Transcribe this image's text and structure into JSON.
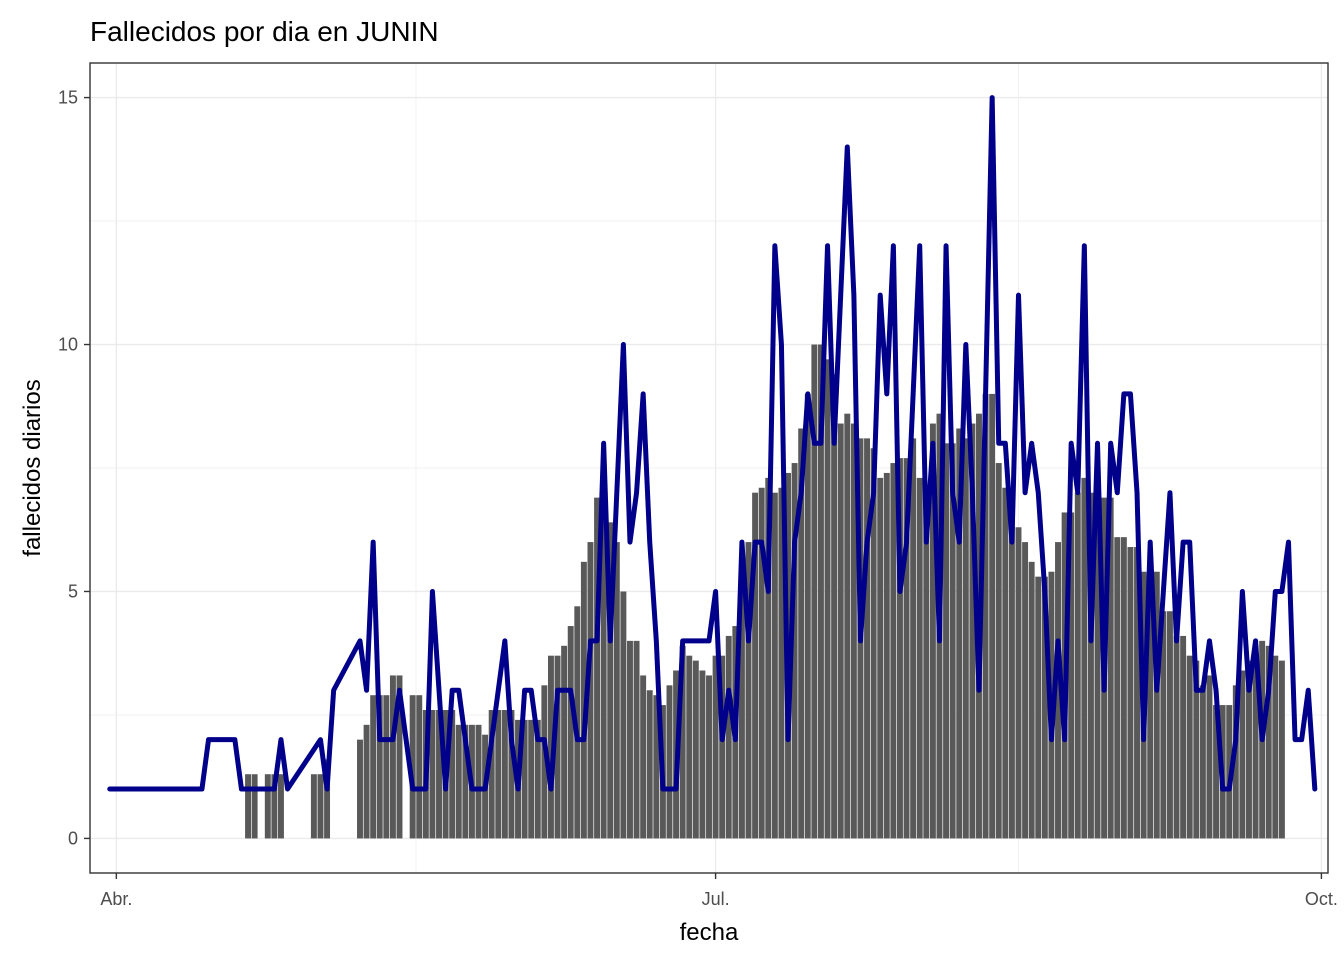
{
  "chart_data": {
    "type": "bar",
    "title": "Fallecidos por dia en JUNIN",
    "xlabel": "fecha",
    "ylabel": "fallecidos diarios",
    "x_ticks": [
      "Abr.",
      "Jul.",
      "Oct."
    ],
    "y_ticks": [
      "0",
      "5",
      "10",
      "15"
    ],
    "y_tick_values": [
      0,
      5,
      10,
      15
    ],
    "ylim": [
      -0.7,
      15.7
    ],
    "xlim": [
      "2020-03-28",
      "2020-10-02"
    ],
    "grid": true,
    "bar_color": "#595959",
    "line_color": "#00008B",
    "series": [
      {
        "type": "bar",
        "start_date": "2020-04-21",
        "values": [
          1.3,
          1.3,
          0,
          1.3,
          1.3,
          1.3,
          0,
          0,
          0,
          0,
          1.3,
          1.3,
          1.6,
          0,
          0,
          0,
          0,
          2,
          2.3,
          2.9,
          2.9,
          2.9,
          3.3,
          3.3,
          0,
          2.9,
          2.9,
          2.6,
          2.6,
          2.6,
          2.6,
          2.6,
          2.3,
          2.3,
          2.3,
          2.3,
          2.1,
          2.6,
          2.6,
          2.6,
          2.6,
          2.4,
          2.4,
          2.4,
          2.4,
          3.1,
          3.7,
          3.7,
          3.9,
          4.3,
          4.7,
          5.6,
          6,
          6.9,
          6.7,
          6.4,
          6,
          5,
          4,
          4,
          3.3,
          3,
          2.9,
          2.7,
          3.1,
          3.4,
          3.9,
          3.7,
          3.6,
          3.4,
          3.3,
          3.7,
          3.7,
          4.1,
          4.3,
          5.6,
          6,
          7,
          7.1,
          7.3,
          7,
          7.1,
          7.4,
          7.6,
          8.3,
          9,
          10,
          10,
          9.7,
          9.4,
          8.4,
          8.6,
          8.4,
          8.1,
          8.1,
          7.9,
          7.3,
          7.4,
          7.6,
          7.7,
          7.7,
          8.1,
          7.3,
          7,
          8.4,
          8.6,
          8,
          8,
          8.3,
          8.1,
          8.4,
          8.6,
          9,
          9,
          7.6,
          7.1,
          6.6,
          6.3,
          6,
          5.6,
          5.3,
          5.3,
          5.4,
          6,
          6.6,
          6.6,
          7,
          7.3,
          7,
          6.6,
          6.9,
          6.9,
          6.1,
          6.1,
          5.9,
          5.9,
          5.4,
          5.4,
          5.4,
          4.6,
          4.6,
          4.1,
          4.1,
          3.7,
          3.6,
          3.1,
          3.3,
          2.7,
          2.7,
          2.7,
          3.1,
          3.4,
          3.6,
          3.9,
          4,
          3.9,
          3.7,
          3.6
        ]
      },
      {
        "type": "line",
        "points": [
          [
            "2020-03-31",
            1
          ],
          [
            "2020-04-14",
            1
          ],
          [
            "2020-04-15",
            2
          ],
          [
            "2020-04-19",
            2
          ],
          [
            "2020-04-20",
            1
          ],
          [
            "2020-04-25",
            1
          ],
          [
            "2020-04-26",
            2
          ],
          [
            "2020-04-27",
            1
          ],
          [
            "2020-05-02",
            2
          ],
          [
            "2020-05-03",
            1
          ],
          [
            "2020-05-04",
            3
          ],
          [
            "2020-05-08",
            4
          ],
          [
            "2020-05-09",
            3
          ],
          [
            "2020-05-10",
            6
          ],
          [
            "2020-05-11",
            2
          ],
          [
            "2020-05-13",
            2
          ],
          [
            "2020-05-14",
            3
          ],
          [
            "2020-05-16",
            1
          ],
          [
            "2020-05-18",
            1
          ],
          [
            "2020-05-19",
            5
          ],
          [
            "2020-05-20",
            3
          ],
          [
            "2020-05-21",
            1
          ],
          [
            "2020-05-22",
            3
          ],
          [
            "2020-05-23",
            3
          ],
          [
            "2020-05-24",
            2
          ],
          [
            "2020-05-25",
            1
          ],
          [
            "2020-05-27",
            1
          ],
          [
            "2020-05-30",
            4
          ],
          [
            "2020-05-31",
            2
          ],
          [
            "2020-06-01",
            1
          ],
          [
            "2020-06-02",
            3
          ],
          [
            "2020-06-03",
            3
          ],
          [
            "2020-06-04",
            2
          ],
          [
            "2020-06-05",
            2
          ],
          [
            "2020-06-06",
            1
          ],
          [
            "2020-06-07",
            3
          ],
          [
            "2020-06-09",
            3
          ],
          [
            "2020-06-10",
            2
          ],
          [
            "2020-06-11",
            2
          ],
          [
            "2020-06-12",
            4
          ],
          [
            "2020-06-13",
            4
          ],
          [
            "2020-06-14",
            8
          ],
          [
            "2020-06-15",
            4
          ],
          [
            "2020-06-16",
            7
          ],
          [
            "2020-06-17",
            10
          ],
          [
            "2020-06-18",
            6
          ],
          [
            "2020-06-19",
            7
          ],
          [
            "2020-06-20",
            9
          ],
          [
            "2020-06-21",
            6
          ],
          [
            "2020-06-22",
            4
          ],
          [
            "2020-06-23",
            1
          ],
          [
            "2020-06-25",
            1
          ],
          [
            "2020-06-26",
            4
          ],
          [
            "2020-06-30",
            4
          ],
          [
            "2020-07-01",
            5
          ],
          [
            "2020-07-02",
            2
          ],
          [
            "2020-07-03",
            3
          ],
          [
            "2020-07-04",
            2
          ],
          [
            "2020-07-05",
            6
          ],
          [
            "2020-07-06",
            4
          ],
          [
            "2020-07-07",
            6
          ],
          [
            "2020-07-08",
            6
          ],
          [
            "2020-07-09",
            5
          ],
          [
            "2020-07-10",
            12
          ],
          [
            "2020-07-11",
            10
          ],
          [
            "2020-07-12",
            2
          ],
          [
            "2020-07-13",
            6
          ],
          [
            "2020-07-14",
            7
          ],
          [
            "2020-07-15",
            9
          ],
          [
            "2020-07-16",
            8
          ],
          [
            "2020-07-17",
            8
          ],
          [
            "2020-07-18",
            12
          ],
          [
            "2020-07-19",
            8
          ],
          [
            "2020-07-20",
            11
          ],
          [
            "2020-07-21",
            14
          ],
          [
            "2020-07-22",
            11
          ],
          [
            "2020-07-23",
            4
          ],
          [
            "2020-07-24",
            6
          ],
          [
            "2020-07-25",
            7
          ],
          [
            "2020-07-26",
            11
          ],
          [
            "2020-07-27",
            9
          ],
          [
            "2020-07-28",
            12
          ],
          [
            "2020-07-29",
            5
          ],
          [
            "2020-07-30",
            6
          ],
          [
            "2020-07-31",
            9
          ],
          [
            "2020-08-01",
            12
          ],
          [
            "2020-08-02",
            6
          ],
          [
            "2020-08-03",
            8
          ],
          [
            "2020-08-04",
            4
          ],
          [
            "2020-08-05",
            12
          ],
          [
            "2020-08-06",
            7
          ],
          [
            "2020-08-07",
            6
          ],
          [
            "2020-08-08",
            10
          ],
          [
            "2020-08-09",
            7
          ],
          [
            "2020-08-10",
            3
          ],
          [
            "2020-08-11",
            9
          ],
          [
            "2020-08-12",
            15
          ],
          [
            "2020-08-13",
            8
          ],
          [
            "2020-08-14",
            8
          ],
          [
            "2020-08-15",
            6
          ],
          [
            "2020-08-16",
            11
          ],
          [
            "2020-08-17",
            7
          ],
          [
            "2020-08-18",
            8
          ],
          [
            "2020-08-19",
            7
          ],
          [
            "2020-08-20",
            5
          ],
          [
            "2020-08-21",
            2
          ],
          [
            "2020-08-22",
            4
          ],
          [
            "2020-08-23",
            2
          ],
          [
            "2020-08-24",
            8
          ],
          [
            "2020-08-25",
            7
          ],
          [
            "2020-08-26",
            12
          ],
          [
            "2020-08-27",
            4
          ],
          [
            "2020-08-28",
            8
          ],
          [
            "2020-08-29",
            3
          ],
          [
            "2020-08-30",
            8
          ],
          [
            "2020-08-31",
            7
          ],
          [
            "2020-09-01",
            9
          ],
          [
            "2020-09-02",
            9
          ],
          [
            "2020-09-03",
            7
          ],
          [
            "2020-09-04",
            2
          ],
          [
            "2020-09-05",
            6
          ],
          [
            "2020-09-06",
            3
          ],
          [
            "2020-09-07",
            5
          ],
          [
            "2020-09-08",
            7
          ],
          [
            "2020-09-09",
            4
          ],
          [
            "2020-09-10",
            6
          ],
          [
            "2020-09-11",
            6
          ],
          [
            "2020-09-12",
            3
          ],
          [
            "2020-09-13",
            3
          ],
          [
            "2020-09-14",
            4
          ],
          [
            "2020-09-15",
            3
          ],
          [
            "2020-09-16",
            1
          ],
          [
            "2020-09-17",
            1
          ],
          [
            "2020-09-18",
            2
          ],
          [
            "2020-09-19",
            5
          ],
          [
            "2020-09-20",
            3
          ],
          [
            "2020-09-21",
            4
          ],
          [
            "2020-09-22",
            2
          ],
          [
            "2020-09-23",
            3
          ],
          [
            "2020-09-24",
            5
          ],
          [
            "2020-09-25",
            5
          ],
          [
            "2020-09-26",
            6
          ],
          [
            "2020-09-27",
            2
          ],
          [
            "2020-09-28",
            2
          ],
          [
            "2020-09-29",
            3
          ],
          [
            "2020-09-30",
            1
          ]
        ]
      }
    ]
  }
}
